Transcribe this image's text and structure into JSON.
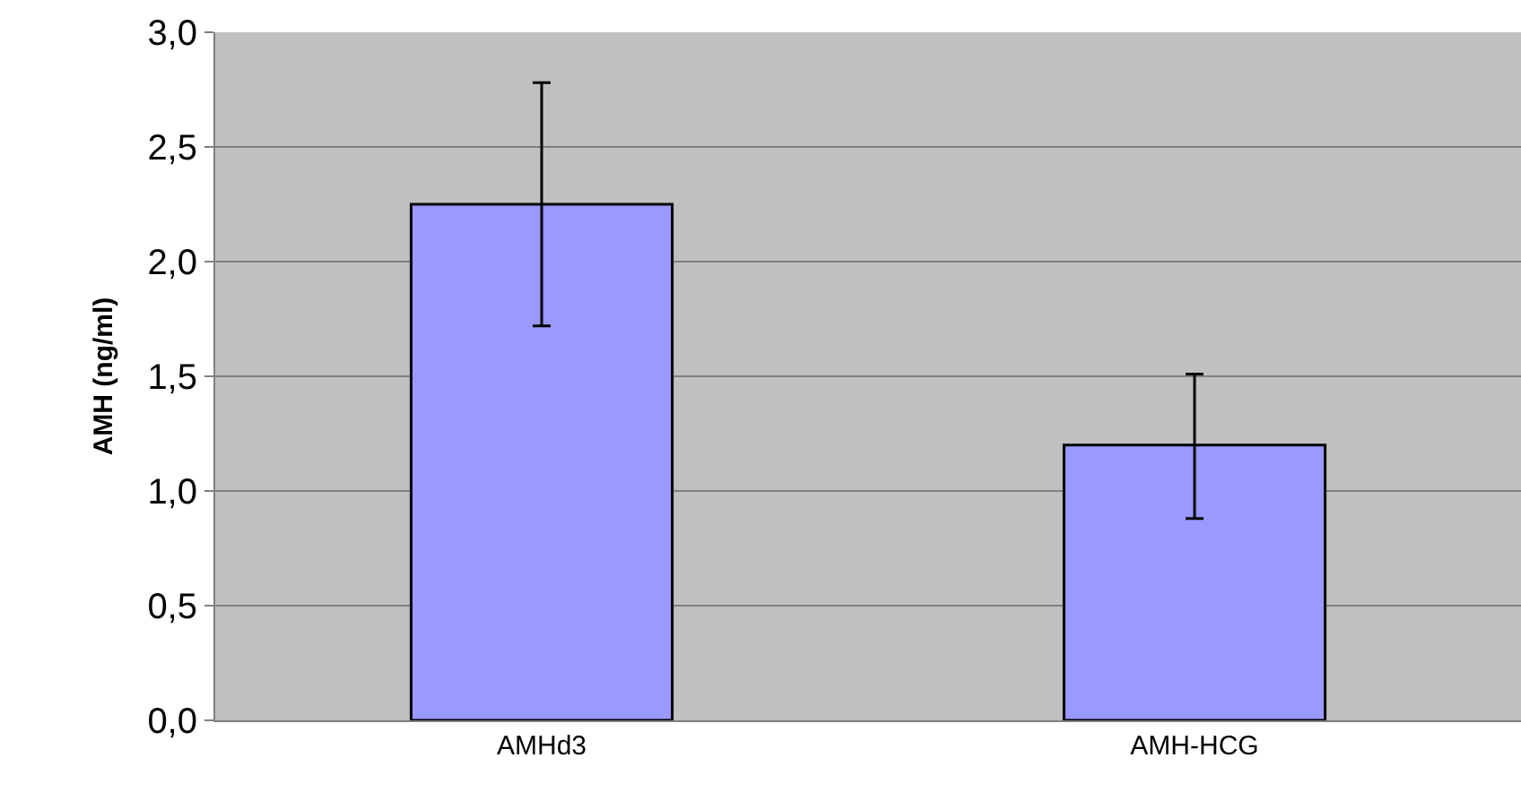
{
  "chart_data": {
    "type": "bar",
    "ylabel": "AMH (ng/ml)",
    "categories": [
      "AMHd3",
      "AMH-HCG"
    ],
    "values": [
      2.25,
      1.2
    ],
    "errors": [
      [
        1.72,
        2.78
      ],
      [
        0.88,
        1.51
      ]
    ],
    "color": "#9999ff",
    "ylim": [
      0,
      3
    ],
    "yticks": [
      {
        "value": 0,
        "label": "0,0"
      },
      {
        "value": 0.5,
        "label": "0,5"
      },
      {
        "value": 1,
        "label": "1,0"
      },
      {
        "value": 1.5,
        "label": "1,5"
      },
      {
        "value": 2,
        "label": "2,0"
      },
      {
        "value": 2.5,
        "label": "2,5"
      },
      {
        "value": 3,
        "label": "3,0"
      }
    ],
    "grid": "y",
    "legend": false
  }
}
